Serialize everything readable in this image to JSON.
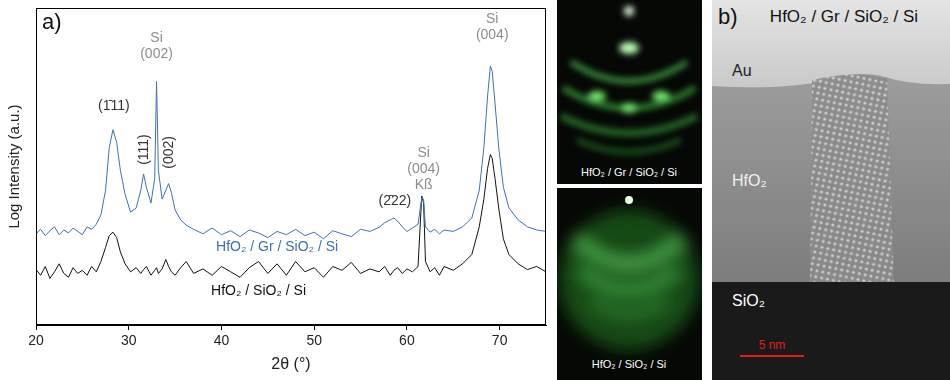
{
  "chart_data": {
    "type": "line",
    "title": "a)",
    "xlabel": "2θ (°)",
    "ylabel": "Log Intensity (a.u.)",
    "log": "y",
    "grid": false,
    "tick_labels": "x",
    "xlim": [
      20,
      75
    ],
    "xticks": [
      20,
      30,
      40,
      50,
      60,
      70
    ],
    "ylim": [
      1,
      100000000
    ],
    "x": [
      20,
      20.5,
      21,
      21.5,
      22,
      22.5,
      23,
      23.5,
      24,
      24.5,
      25,
      25.5,
      26,
      26.5,
      27,
      27.5,
      27.9,
      28.3,
      28.7,
      29.1,
      29.6,
      30.2,
      30.8,
      31.3,
      31.6,
      31.9,
      32.4,
      32.8,
      33.0,
      33.2,
      33.6,
      34.0,
      34.3,
      34.6,
      35.0,
      35.6,
      36.2,
      37,
      38,
      39,
      40,
      41,
      42,
      43,
      44,
      45,
      46,
      47,
      48,
      49,
      50,
      51,
      52,
      53,
      54,
      55,
      56,
      57,
      57.6,
      58.2,
      58.6,
      59.0,
      59.5,
      60,
      60.6,
      61.2,
      61.6,
      61.8,
      62.0,
      62.5,
      63,
      63.5,
      64,
      65,
      66,
      67,
      67.8,
      68.3,
      68.7,
      69.0,
      69.2,
      69.5,
      69.9,
      70.4,
      71,
      72,
      73,
      74,
      75
    ],
    "series": [
      {
        "name": "HfO₂ / Gr / SiO₂ / Si",
        "color": "#3f6fb5",
        "values": [
          200,
          260,
          180,
          240,
          300,
          190,
          250,
          210,
          280,
          230,
          190,
          300,
          260,
          350,
          600,
          2500,
          30000,
          85000,
          40000,
          8000,
          2000,
          700,
          900,
          2500,
          6500,
          3000,
          1200,
          5000,
          1400000,
          8000,
          1500,
          2500,
          3700,
          2200,
          800,
          450,
          330,
          260,
          200,
          280,
          190,
          240,
          170,
          250,
          210,
          160,
          230,
          190,
          260,
          180,
          220,
          150,
          240,
          200,
          170,
          260,
          230,
          290,
          380,
          450,
          500,
          420,
          300,
          230,
          280,
          350,
          1600,
          1500,
          300,
          220,
          260,
          200,
          250,
          230,
          300,
          500,
          2500,
          30000,
          600000,
          3400000,
          2500000,
          400000,
          30000,
          3000,
          900,
          450,
          300,
          250,
          230
        ]
      },
      {
        "name": "HfO₂ / SiO₂ / Si",
        "color": "#111111",
        "values": [
          25,
          18,
          30,
          15,
          22,
          35,
          20,
          16,
          28,
          20,
          24,
          18,
          30,
          22,
          40,
          90,
          180,
          220,
          160,
          70,
          35,
          22,
          28,
          20,
          25,
          30,
          18,
          24,
          28,
          20,
          26,
          45,
          30,
          22,
          18,
          28,
          40,
          20,
          26,
          18,
          30,
          22,
          16,
          28,
          40,
          20,
          35,
          18,
          40,
          22,
          28,
          16,
          30,
          24,
          38,
          20,
          26,
          22,
          30,
          18,
          24,
          28,
          20,
          26,
          22,
          30,
          1800,
          1200,
          40,
          22,
          28,
          18,
          30,
          24,
          35,
          60,
          300,
          1500,
          9000,
          20000,
          16000,
          5000,
          900,
          150,
          60,
          35,
          25,
          30,
          22
        ]
      }
    ],
    "annotations": [
      {
        "text": "(1̄11)",
        "x": 28.4,
        "y": 220000,
        "color": "#333333"
      },
      {
        "text": "(111)",
        "x": 31.7,
        "y": 11000,
        "color": "#333333"
      },
      {
        "text": "Si\n(002)",
        "x": 33.0,
        "y": 4500000,
        "color": "#8c8c8c"
      },
      {
        "text": "(002)",
        "x": 34.4,
        "y": 8800,
        "color": "#333333"
      },
      {
        "text": "(2̄22)",
        "x": 58.7,
        "y": 900,
        "color": "#333333"
      },
      {
        "text": "Si\n(004)\nKß",
        "x": 61.8,
        "y": 2300,
        "color": "#8c8c8c"
      },
      {
        "text": "Si\n(004)",
        "x": 69.2,
        "y": 14000000,
        "color": "#8c8c8c"
      },
      {
        "series": 0,
        "x": 46,
        "y": 90
      },
      {
        "series": 1,
        "x": 44,
        "y": 7
      }
    ]
  },
  "rheed": [
    {
      "caption": "HfO₂ / Gr / SiO₂ / Si"
    },
    {
      "caption": "HfO₂ / SiO₂ / Si"
    }
  ],
  "tem": {
    "panel_label": "b)",
    "title": "HfO₂ / Gr / SiO₂ / Si",
    "layers": [
      "Au",
      "HfO₂",
      "SiO₂"
    ],
    "scale_bar": "5 nm"
  }
}
